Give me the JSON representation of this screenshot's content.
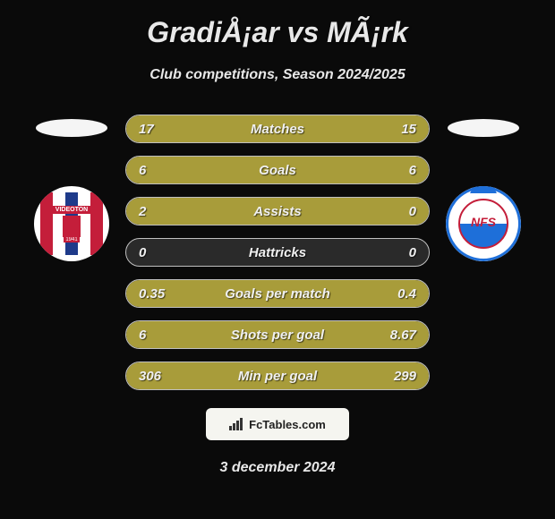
{
  "title": "GradiÅ¡ar vs MÃ¡rk",
  "subtitle": "Club competitions, Season 2024/2025",
  "date": "3 december 2024",
  "footer_brand": "FcTables.com",
  "player_left": {
    "club_abbrev": "VIDEOTON",
    "club_year": "1941",
    "club_colors": [
      "#c41e3a",
      "#ffffff",
      "#1e3a8a"
    ]
  },
  "player_right": {
    "club_abbrev": "NFS",
    "club_colors": [
      "#1e6fd9",
      "#c41e3a",
      "#ffffff"
    ]
  },
  "stats": [
    {
      "label": "Matches",
      "left_val": "17",
      "right_val": "15",
      "left_pct": 53,
      "right_pct": 47,
      "fill_color": "#a89c3a"
    },
    {
      "label": "Goals",
      "left_val": "6",
      "right_val": "6",
      "left_pct": 50,
      "right_pct": 50,
      "fill_color": "#a89c3a"
    },
    {
      "label": "Assists",
      "left_val": "2",
      "right_val": "0",
      "left_pct": 100,
      "right_pct": 0,
      "fill_color": "#a89c3a"
    },
    {
      "label": "Hattricks",
      "left_val": "0",
      "right_val": "0",
      "left_pct": 0,
      "right_pct": 0,
      "fill_color": "#a89c3a"
    },
    {
      "label": "Goals per match",
      "left_val": "0.35",
      "right_val": "0.4",
      "left_pct": 47,
      "right_pct": 53,
      "fill_color": "#a89c3a"
    },
    {
      "label": "Shots per goal",
      "left_val": "6",
      "right_val": "8.67",
      "left_pct": 41,
      "right_pct": 59,
      "fill_color": "#a89c3a"
    },
    {
      "label": "Min per goal",
      "left_val": "306",
      "right_val": "299",
      "left_pct": 51,
      "right_pct": 49,
      "fill_color": "#a89c3a"
    }
  ],
  "colors": {
    "background": "#0a0a0a",
    "text": "#e8e8e8",
    "bar_empty": "#2a2a2a",
    "bar_border": "#c0c0c0",
    "bar_fill": "#a89c3a",
    "footer_bg": "#f5f5f0"
  },
  "typography": {
    "title_fontsize": 32,
    "subtitle_fontsize": 16,
    "stat_fontsize": 15,
    "date_fontsize": 16
  }
}
